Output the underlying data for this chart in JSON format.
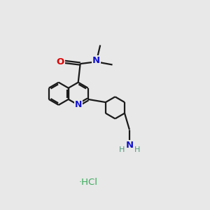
{
  "bg_color": "#e8e8e8",
  "bond_color": "#1a1a1a",
  "N_color": "#1414cc",
  "O_color": "#dd0000",
  "NH_color": "#4a9a7a",
  "Cl_color": "#3aaa5a",
  "line_width": 1.6,
  "figsize": [
    3.0,
    3.0
  ],
  "dpi": 100,
  "xlim": [
    0,
    10
  ],
  "ylim": [
    0,
    10
  ]
}
